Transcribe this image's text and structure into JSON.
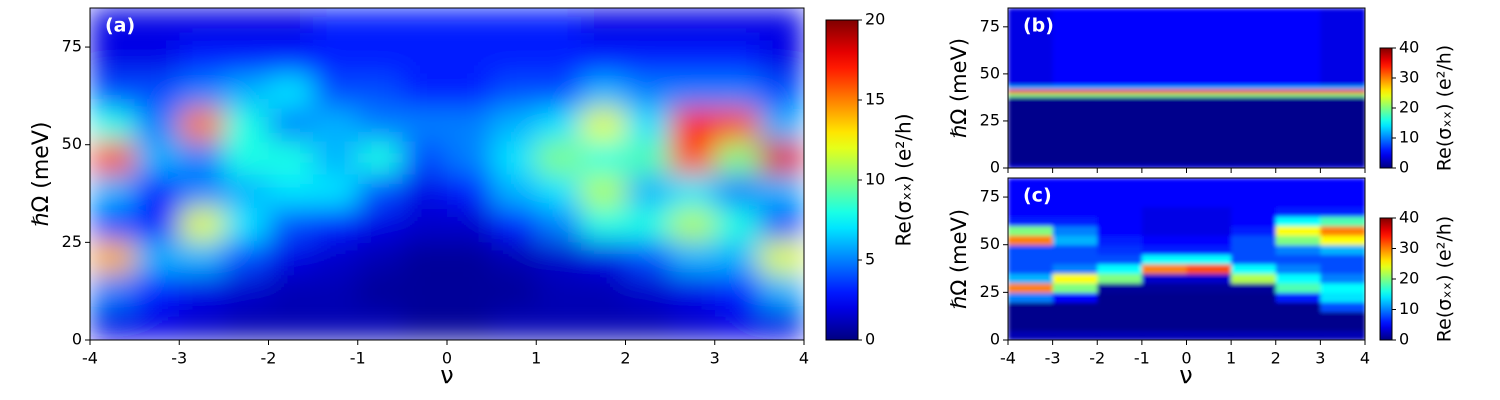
{
  "chart_data": [
    {
      "type": "heatmap",
      "label": "(a)",
      "xlabel": "ν",
      "ylabel": "ℏΩ (meV)",
      "colormap": "jet",
      "xlim": [
        -4,
        4
      ],
      "xticks": [
        -4,
        -3,
        -2,
        -1,
        0,
        1,
        2,
        3,
        4
      ],
      "ylim": [
        0,
        85
      ],
      "yticks": [
        0,
        25,
        50,
        75
      ],
      "colorbar": {
        "label": "Re(σₓₓ) (e²/h)",
        "lim": [
          0,
          20
        ],
        "ticks": [
          0,
          5,
          10,
          15,
          20
        ]
      },
      "x_edges": [
        -4,
        -3.5,
        -3,
        -2.5,
        -2,
        -1.5,
        -1,
        -0.5,
        0,
        0.5,
        1,
        1.5,
        2,
        2.5,
        3,
        3.5,
        4
      ],
      "y_edges": [
        0,
        8.5,
        17,
        25.5,
        34,
        42.5,
        51,
        59.5,
        68,
        76.5,
        85
      ],
      "z": [
        [
          2,
          2,
          1.5,
          1,
          1,
          1,
          1,
          0.5,
          0.5,
          1,
          1,
          1,
          1,
          1.5,
          2,
          2
        ],
        [
          5,
          3,
          2,
          1.5,
          1,
          1,
          0.5,
          0.5,
          0.5,
          0.5,
          1,
          1,
          1.5,
          2,
          3,
          6
        ],
        [
          14,
          6,
          6,
          4,
          2,
          1.5,
          1,
          0.5,
          0.5,
          1,
          1.5,
          2,
          4,
          6,
          6,
          12
        ],
        [
          4,
          3,
          12,
          7,
          4,
          3,
          2,
          1.5,
          1.5,
          3,
          5,
          8,
          8,
          11,
          8,
          4
        ],
        [
          6,
          3,
          5,
          6,
          7,
          7,
          4,
          2,
          3,
          6,
          7,
          11,
          6,
          7,
          5,
          6
        ],
        [
          16,
          6,
          5,
          8,
          8,
          6,
          8,
          4,
          5,
          7,
          10,
          8,
          9,
          16,
          10,
          18
        ],
        [
          8,
          5,
          15,
          8,
          5,
          6,
          5,
          5,
          5,
          6,
          7,
          12,
          7,
          17,
          16,
          6
        ],
        [
          4,
          4,
          5,
          6,
          7,
          4,
          4,
          3,
          3,
          4,
          4,
          6,
          5,
          5,
          5,
          4
        ],
        [
          2,
          2,
          3,
          3,
          3,
          3,
          3,
          3,
          3,
          3,
          3,
          3,
          3,
          3,
          3,
          2
        ],
        [
          2,
          2,
          2,
          2,
          2,
          3,
          3,
          3,
          3,
          3,
          3,
          2,
          2,
          2,
          2,
          2
        ]
      ]
    },
    {
      "type": "heatmap",
      "label": "(b)",
      "ylabel": "ℏΩ (meV)",
      "colormap": "jet",
      "xlim": [
        -4,
        4
      ],
      "xticks": [
        -4,
        -3,
        -2,
        -1,
        0,
        1,
        2,
        3,
        4
      ],
      "ylim": [
        0,
        85
      ],
      "yticks": [
        0,
        25,
        50,
        75
      ],
      "colorbar": {
        "label": "Re(σₓₓ) (e²/h)",
        "lim": [
          0,
          40
        ],
        "ticks": [
          0,
          10,
          20,
          30,
          40
        ]
      },
      "x_edges": [
        -4,
        -3,
        -2,
        -1,
        0,
        1,
        2,
        3,
        4
      ],
      "y_edges": [
        0,
        2,
        38,
        40,
        42,
        44,
        85
      ],
      "z": [
        [
          3,
          3,
          3,
          3,
          3,
          3,
          3,
          3
        ],
        [
          0.5,
          0.5,
          0.5,
          0.5,
          0.5,
          0.5,
          0.5,
          0.5
        ],
        [
          20,
          20,
          20,
          20,
          20,
          20,
          20,
          20
        ],
        [
          35,
          35,
          35,
          35,
          35,
          35,
          35,
          35
        ],
        [
          12,
          12,
          12,
          12,
          12,
          12,
          12,
          12
        ],
        [
          4,
          5,
          5,
          5,
          5,
          5,
          5,
          4
        ]
      ]
    },
    {
      "type": "heatmap",
      "label": "(c)",
      "xlabel": "ν",
      "ylabel": "ℏΩ (meV)",
      "colormap": "jet",
      "xlim": [
        -4,
        4
      ],
      "xticks": [
        -4,
        -3,
        -2,
        -1,
        0,
        1,
        2,
        3,
        4
      ],
      "ylim": [
        0,
        85
      ],
      "yticks": [
        0,
        25,
        50,
        75
      ],
      "colorbar": {
        "label": "Re(σₓₓ) (e²/h)",
        "lim": [
          0,
          40
        ],
        "ticks": [
          0,
          10,
          20,
          30,
          40
        ]
      },
      "x_edges": [
        -4,
        -3,
        -2,
        -1,
        0,
        1,
        2,
        3,
        4
      ],
      "y_edges": [
        0,
        5,
        10,
        15,
        20,
        25,
        30,
        35,
        40,
        45,
        50,
        55,
        60,
        65,
        70,
        75,
        80,
        85
      ],
      "z": [
        [
          2,
          2,
          2,
          2,
          2,
          2,
          2,
          2
        ],
        [
          0.5,
          0.5,
          0.5,
          0.5,
          0.5,
          0.5,
          0.5,
          0.5
        ],
        [
          0.5,
          0.5,
          0.5,
          0.5,
          0.5,
          0.5,
          0.5,
          0.5
        ],
        [
          0.5,
          0.5,
          0.5,
          0.5,
          0.5,
          0.5,
          0.5,
          8
        ],
        [
          10,
          5,
          0.5,
          0.5,
          0.5,
          0.5,
          6,
          14
        ],
        [
          30,
          20,
          1,
          1,
          1,
          1,
          18,
          15
        ],
        [
          12,
          25,
          20,
          3,
          3,
          22,
          15,
          10
        ],
        [
          8,
          10,
          15,
          30,
          32,
          15,
          10,
          8
        ],
        [
          8,
          8,
          8,
          15,
          15,
          8,
          8,
          8
        ],
        [
          8,
          8,
          7,
          6,
          6,
          8,
          10,
          12
        ],
        [
          30,
          12,
          6,
          5,
          5,
          8,
          20,
          25
        ],
        [
          20,
          10,
          5,
          4,
          4,
          6,
          25,
          30
        ],
        [
          6,
          6,
          5,
          4,
          4,
          5,
          15,
          18
        ],
        [
          5,
          5,
          5,
          4,
          4,
          5,
          6,
          6
        ],
        [
          5,
          5,
          5,
          5,
          5,
          5,
          5,
          5
        ],
        [
          5,
          5,
          5,
          5,
          5,
          5,
          5,
          5
        ],
        [
          5,
          5,
          5,
          5,
          5,
          5,
          5,
          5
        ]
      ]
    }
  ]
}
